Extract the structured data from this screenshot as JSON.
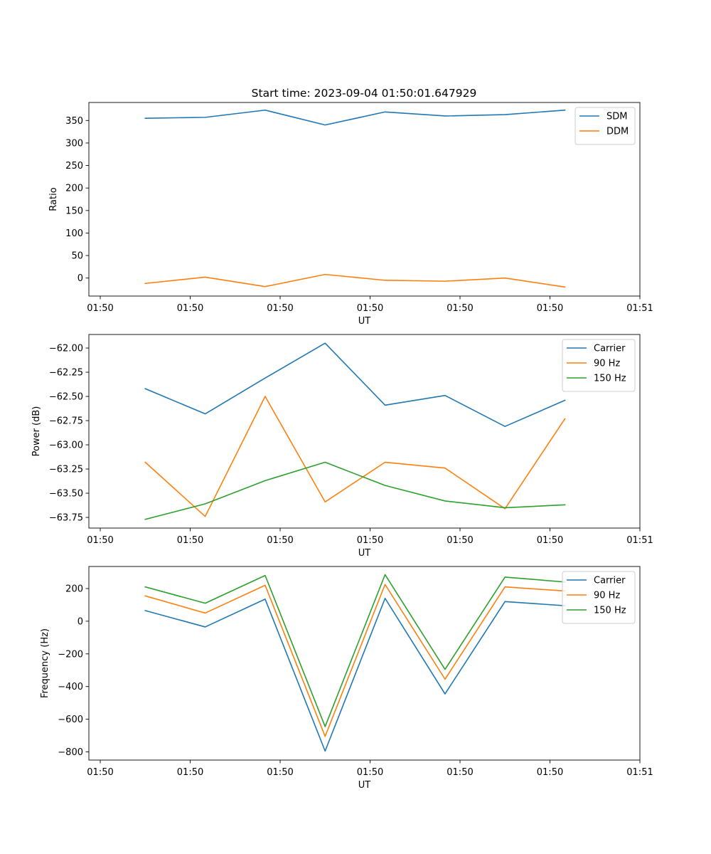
{
  "figure_title": "Start time: 2023-09-04 01:50:01.647929",
  "colors": {
    "blue": "#1f77b4",
    "orange": "#ff7f0e",
    "green": "#2ca02c"
  },
  "chart_data": [
    {
      "type": "line",
      "title": "Start time: 2023-09-04 01:50:01.647929",
      "xlabel": "UT",
      "ylabel": "Ratio",
      "xlim": [
        -0.19,
        9.0
      ],
      "ylim": [
        -40,
        390
      ],
      "x": [
        0.75,
        1.75,
        2.75,
        3.75,
        4.75,
        5.75,
        6.75,
        7.75
      ],
      "xticks": [
        0,
        1.5,
        3,
        4.5,
        6,
        7.5,
        9
      ],
      "xticklabels": [
        "01:50",
        "01:50",
        "01:50",
        "01:50",
        "01:50",
        "01:50",
        "01:51"
      ],
      "yticks": [
        0,
        50,
        100,
        150,
        200,
        250,
        300,
        350
      ],
      "yticklabels": [
        "0",
        "50",
        "100",
        "150",
        "200",
        "250",
        "300",
        "350"
      ],
      "legend_position": "top-right",
      "series": [
        {
          "name": "SDM",
          "color": "#1f77b4",
          "values": [
            355,
            357,
            373,
            340,
            369,
            360,
            363,
            373
          ]
        },
        {
          "name": "DDM",
          "color": "#ff7f0e",
          "values": [
            -12,
            2,
            -19,
            8,
            -5,
            -7,
            0,
            -20
          ]
        }
      ]
    },
    {
      "type": "line",
      "title": "",
      "xlabel": "UT",
      "ylabel": "Power (dB)",
      "xlim": [
        -0.19,
        9.0
      ],
      "ylim": [
        -63.86,
        -61.86
      ],
      "x": [
        0.75,
        1.75,
        2.75,
        3.75,
        4.75,
        5.75,
        6.75,
        7.75
      ],
      "xticks": [
        0,
        1.5,
        3,
        4.5,
        6,
        7.5,
        9
      ],
      "xticklabels": [
        "01:50",
        "01:50",
        "01:50",
        "01:50",
        "01:50",
        "01:50",
        "01:51"
      ],
      "yticks": [
        -63.75,
        -63.5,
        -63.25,
        -63.0,
        -62.75,
        -62.5,
        -62.25,
        -62.0
      ],
      "yticklabels": [
        "−63.75",
        "−63.50",
        "−63.25",
        "−63.00",
        "−62.75",
        "−62.50",
        "−62.25",
        "−62.00"
      ],
      "legend_position": "top-right",
      "series": [
        {
          "name": "Carrier",
          "color": "#1f77b4",
          "values": [
            -62.42,
            -62.68,
            -62.31,
            -61.95,
            -62.59,
            -62.49,
            -62.81,
            -62.54
          ]
        },
        {
          "name": "90 Hz",
          "color": "#ff7f0e",
          "values": [
            -63.18,
            -63.74,
            -62.5,
            -63.59,
            -63.18,
            -63.24,
            -63.66,
            -62.73
          ]
        },
        {
          "name": "150 Hz",
          "color": "#2ca02c",
          "values": [
            -63.77,
            -63.61,
            -63.37,
            -63.18,
            -63.42,
            -63.58,
            -63.65,
            -63.62
          ]
        }
      ]
    },
    {
      "type": "line",
      "title": "",
      "xlabel": "UT",
      "ylabel": "Frequency (Hz)",
      "xlim": [
        -0.19,
        9.0
      ],
      "ylim": [
        -850,
        335
      ],
      "x": [
        0.75,
        1.75,
        2.75,
        3.75,
        4.75,
        5.75,
        6.75,
        7.75
      ],
      "xticks": [
        0,
        1.5,
        3,
        4.5,
        6,
        7.5,
        9
      ],
      "xticklabels": [
        "01:50",
        "01:50",
        "01:50",
        "01:50",
        "01:50",
        "01:50",
        "01:51"
      ],
      "yticks": [
        -800,
        -600,
        -400,
        -200,
        0,
        200
      ],
      "yticklabels": [
        "−800",
        "−600",
        "−400",
        "−200",
        "0",
        "200"
      ],
      "legend_position": "top-right",
      "series": [
        {
          "name": "Carrier",
          "color": "#1f77b4",
          "values": [
            65,
            -35,
            135,
            -795,
            140,
            -445,
            120,
            95
          ]
        },
        {
          "name": "90 Hz",
          "color": "#ff7f0e",
          "values": [
            155,
            50,
            220,
            -705,
            225,
            -355,
            210,
            185
          ]
        },
        {
          "name": "150 Hz",
          "color": "#2ca02c",
          "values": [
            210,
            110,
            280,
            -645,
            285,
            -295,
            270,
            240
          ]
        }
      ]
    }
  ]
}
